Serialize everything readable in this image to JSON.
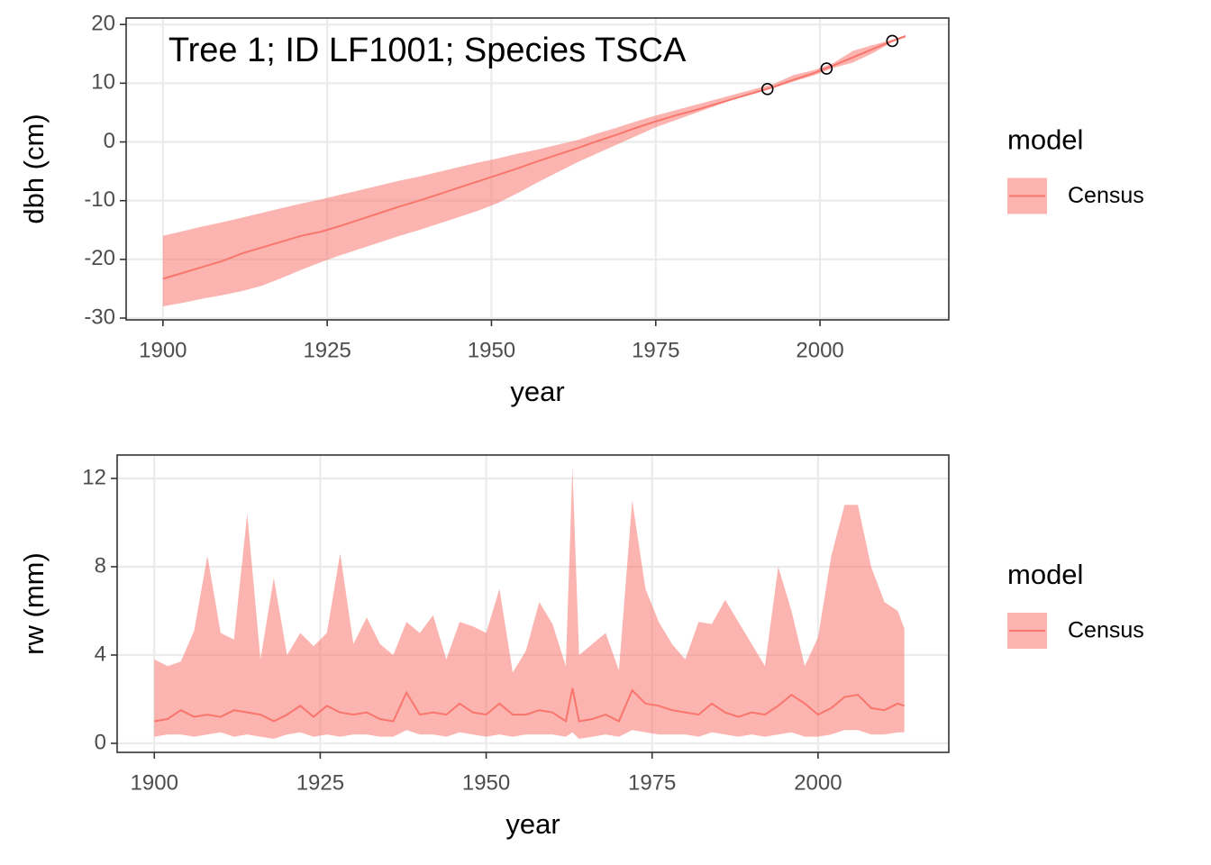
{
  "chart_data": [
    {
      "type": "line",
      "annotation": "Tree 1; ID LF1001; Species TSCA",
      "xlabel": "year",
      "ylabel": "dbh (cm)",
      "legend_title": "model",
      "legend": "right",
      "grid": true,
      "xlim": [
        1894.4,
        2019.6
      ],
      "ylim": [
        -30.3,
        21.1
      ],
      "xticks": [
        1900,
        1925,
        1950,
        1975,
        2000
      ],
      "yticks": [
        -30,
        -20,
        -10,
        0,
        10,
        20
      ],
      "x": [
        1900,
        1903,
        1906,
        1909,
        1912,
        1915,
        1918,
        1921,
        1924,
        1927,
        1930,
        1933,
        1936,
        1939,
        1942,
        1945,
        1948,
        1951,
        1954,
        1957,
        1960,
        1963,
        1966,
        1969,
        1972,
        1975,
        1978,
        1981,
        1984,
        1987,
        1990,
        1993,
        1996,
        1999,
        2002,
        2005,
        2008,
        2011,
        2013
      ],
      "series": [
        {
          "name": "Census",
          "color": "#f8766d",
          "values": [
            -23.3,
            -22.3,
            -21.3,
            -20.3,
            -19.0,
            -18.0,
            -17.0,
            -16.0,
            -15.3,
            -14.3,
            -13.2,
            -12.1,
            -11.0,
            -10.0,
            -8.9,
            -7.8,
            -6.7,
            -5.6,
            -4.5,
            -3.3,
            -2.2,
            -1.1,
            0.1,
            1.2,
            2.4,
            3.5,
            4.5,
            5.4,
            6.4,
            7.4,
            8.4,
            9.4,
            10.6,
            11.7,
            13.0,
            14.4,
            15.8,
            17.2,
            18.0
          ],
          "upper": [
            -16,
            -15.2,
            -14.4,
            -13.7,
            -12.9,
            -12.1,
            -11.3,
            -10.5,
            -9.8,
            -9.0,
            -8.2,
            -7.4,
            -6.6,
            -5.9,
            -5.1,
            -4.3,
            -3.5,
            -2.8,
            -2.0,
            -1.3,
            -0.5,
            0.3,
            1.4,
            2.4,
            3.5,
            4.5,
            5.4,
            6.3,
            7.2,
            8.1,
            9.0,
            9.9,
            11.4,
            12.2,
            13.4,
            15.5,
            16.5,
            17.4,
            18.2
          ],
          "lower": [
            -28,
            -27.4,
            -26.7,
            -26.1,
            -25.4,
            -24.5,
            -23.2,
            -21.8,
            -20.5,
            -19.3,
            -18.2,
            -17.1,
            -16.0,
            -15.0,
            -13.9,
            -12.8,
            -11.7,
            -10.4,
            -8.7,
            -6.9,
            -5.2,
            -3.5,
            -2.0,
            -0.5,
            1.0,
            2.5,
            3.7,
            4.9,
            6.1,
            7.3,
            8.2,
            9.2,
            10.3,
            11.3,
            12.6,
            13.5,
            15.1,
            17.0,
            17.8
          ]
        }
      ],
      "points": {
        "x": [
          1992,
          2001,
          2011
        ],
        "values": [
          9,
          12.5,
          17.2
        ]
      }
    },
    {
      "type": "line",
      "xlabel": "year",
      "ylabel": "rw (mm)",
      "legend_title": "model",
      "legend": "right",
      "grid": true,
      "xlim": [
        1894.4,
        2019.7
      ],
      "ylim": [
        -0.41,
        13.06
      ],
      "xticks": [
        1900,
        1925,
        1950,
        1975,
        2000
      ],
      "yticks": [
        0,
        4,
        8,
        12
      ],
      "x": [
        1900,
        1902,
        1904,
        1906,
        1908,
        1910,
        1912,
        1914,
        1916,
        1918,
        1920,
        1922,
        1924,
        1926,
        1928,
        1930,
        1932,
        1934,
        1936,
        1938,
        1940,
        1942,
        1944,
        1946,
        1948,
        1950,
        1952,
        1954,
        1956,
        1958,
        1960,
        1962,
        1963,
        1964,
        1966,
        1968,
        1970,
        1972,
        1974,
        1976,
        1978,
        1980,
        1982,
        1984,
        1986,
        1988,
        1990,
        1992,
        1994,
        1996,
        1998,
        2000,
        2002,
        2004,
        2006,
        2008,
        2010,
        2012,
        2013
      ],
      "series": [
        {
          "name": "Census",
          "color": "#f8766d",
          "values": [
            1.0,
            1.1,
            1.5,
            1.2,
            1.3,
            1.2,
            1.5,
            1.4,
            1.3,
            1.0,
            1.3,
            1.7,
            1.2,
            1.7,
            1.4,
            1.3,
            1.4,
            1.1,
            1.0,
            2.3,
            1.3,
            1.4,
            1.3,
            1.8,
            1.4,
            1.3,
            1.8,
            1.3,
            1.3,
            1.5,
            1.4,
            1.0,
            2.5,
            1.0,
            1.1,
            1.3,
            1.0,
            2.4,
            1.8,
            1.7,
            1.5,
            1.4,
            1.3,
            1.8,
            1.4,
            1.2,
            1.4,
            1.3,
            1.7,
            2.2,
            1.8,
            1.3,
            1.6,
            2.1,
            2.2,
            1.6,
            1.5,
            1.8,
            1.7
          ],
          "upper": [
            3.8,
            3.5,
            3.7,
            5.1,
            8.5,
            5.0,
            4.7,
            10.4,
            3.8,
            7.5,
            4.0,
            5.0,
            4.4,
            5.0,
            8.6,
            4.5,
            5.7,
            4.5,
            4.0,
            5.5,
            5.0,
            5.8,
            3.8,
            5.5,
            5.3,
            5.0,
            7.0,
            3.2,
            4.2,
            6.4,
            5.4,
            3.5,
            12.5,
            4.0,
            4.5,
            5.0,
            3.3,
            11.0,
            7.0,
            5.5,
            4.5,
            3.8,
            5.5,
            5.4,
            6.5,
            5.5,
            4.5,
            3.5,
            8.0,
            6.0,
            3.5,
            4.8,
            8.5,
            10.8,
            10.8,
            8.0,
            6.4,
            6.0,
            5.2
          ],
          "lower": [
            0.3,
            0.4,
            0.4,
            0.3,
            0.4,
            0.5,
            0.3,
            0.4,
            0.3,
            0.2,
            0.4,
            0.5,
            0.3,
            0.4,
            0.3,
            0.4,
            0.4,
            0.3,
            0.3,
            0.6,
            0.4,
            0.4,
            0.3,
            0.5,
            0.4,
            0.3,
            0.4,
            0.3,
            0.4,
            0.4,
            0.4,
            0.3,
            0.5,
            0.2,
            0.3,
            0.4,
            0.3,
            0.6,
            0.5,
            0.4,
            0.4,
            0.4,
            0.3,
            0.5,
            0.4,
            0.3,
            0.4,
            0.3,
            0.4,
            0.5,
            0.3,
            0.3,
            0.4,
            0.6,
            0.6,
            0.4,
            0.4,
            0.5,
            0.5
          ]
        }
      ]
    }
  ]
}
